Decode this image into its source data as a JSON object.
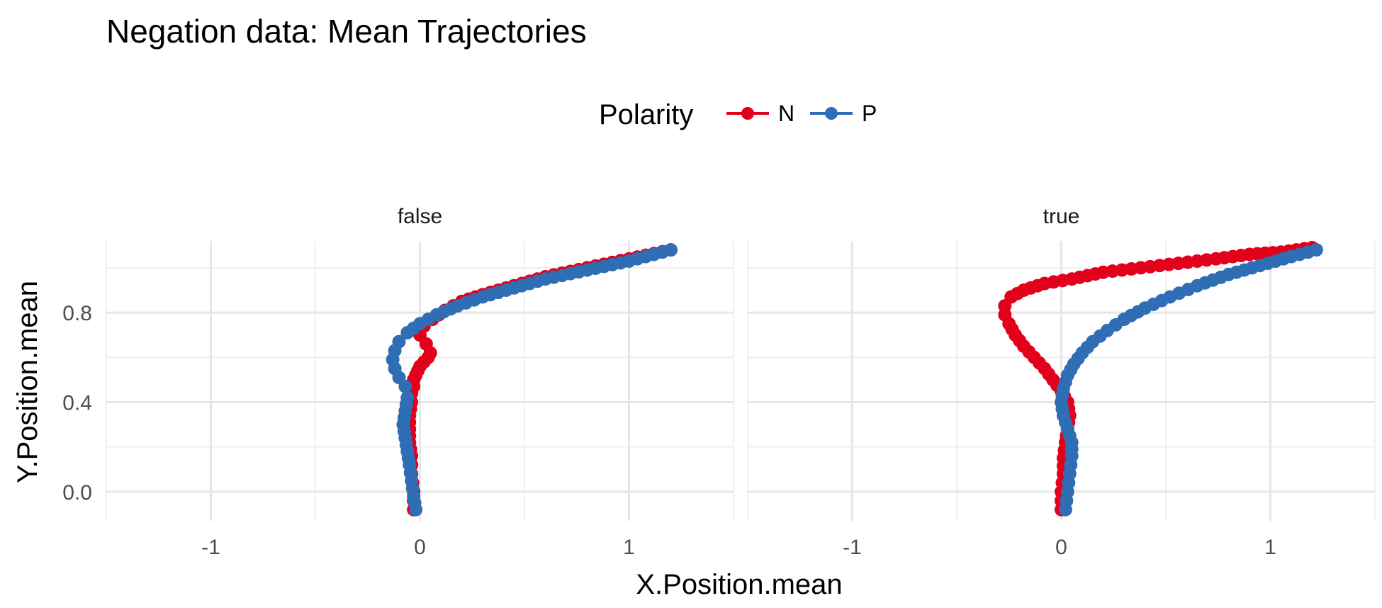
{
  "chart_data": {
    "type": "line",
    "title": "Negation data: Mean Trajectories",
    "xlabel": "X.Position.mean",
    "ylabel": "Y.Position.mean",
    "xlim": [
      -1.5,
      1.5
    ],
    "ylim": [
      -0.13,
      1.12
    ],
    "x_ticks": [
      -1,
      0,
      1
    ],
    "x_tick_labels": [
      "-1",
      "0",
      "1"
    ],
    "y_ticks": [
      0.0,
      0.4,
      0.8
    ],
    "y_tick_labels": [
      "0.0",
      "0.4",
      "0.8"
    ],
    "grid": true,
    "legend": {
      "title": "Polarity",
      "placement": "top",
      "entries": [
        {
          "label": "N",
          "color": "#e2001a"
        },
        {
          "label": "P",
          "color": "#2f6db5"
        }
      ]
    },
    "facets": [
      {
        "label": "false",
        "series": [
          {
            "name": "N",
            "color": "#e2001a",
            "x": [
              -0.03,
              -0.03,
              -0.04,
              -0.04,
              -0.05,
              -0.05,
              -0.05,
              -0.04,
              -0.04,
              -0.03,
              -0.03,
              -0.02,
              -0.01,
              0.0,
              0.02,
              0.04,
              0.05,
              0.03,
              0.0,
              0.02,
              0.06,
              0.12,
              0.2,
              0.3,
              0.45,
              0.6,
              0.8,
              1.0,
              1.2
            ],
            "y": [
              -0.08,
              0.0,
              0.08,
              0.16,
              0.22,
              0.28,
              0.34,
              0.4,
              0.44,
              0.47,
              0.5,
              0.52,
              0.54,
              0.56,
              0.58,
              0.6,
              0.62,
              0.66,
              0.7,
              0.74,
              0.77,
              0.81,
              0.85,
              0.88,
              0.92,
              0.96,
              1.0,
              1.04,
              1.08
            ]
          },
          {
            "name": "P",
            "color": "#2f6db5",
            "x": [
              -0.02,
              -0.03,
              -0.04,
              -0.05,
              -0.06,
              -0.07,
              -0.08,
              -0.07,
              -0.06,
              -0.07,
              -0.1,
              -0.12,
              -0.13,
              -0.12,
              -0.1,
              -0.06,
              0.0,
              0.08,
              0.18,
              0.3,
              0.45,
              0.6,
              0.8,
              1.0,
              1.2
            ],
            "y": [
              -0.08,
              -0.02,
              0.05,
              0.12,
              0.18,
              0.24,
              0.3,
              0.36,
              0.42,
              0.47,
              0.51,
              0.55,
              0.59,
              0.63,
              0.67,
              0.71,
              0.75,
              0.79,
              0.83,
              0.87,
              0.91,
              0.95,
              0.99,
              1.03,
              1.08
            ]
          }
        ]
      },
      {
        "label": "true",
        "series": [
          {
            "name": "N",
            "color": "#e2001a",
            "x": [
              0.0,
              0.0,
              0.01,
              0.01,
              0.02,
              0.03,
              0.04,
              0.03,
              0.0,
              -0.04,
              -0.08,
              -0.13,
              -0.18,
              -0.22,
              -0.25,
              -0.27,
              -0.27,
              -0.24,
              -0.18,
              -0.08,
              0.05,
              0.2,
              0.38,
              0.56,
              0.74,
              0.9,
              1.05,
              1.2
            ],
            "y": [
              -0.08,
              0.0,
              0.08,
              0.15,
              0.22,
              0.28,
              0.34,
              0.4,
              0.45,
              0.5,
              0.55,
              0.6,
              0.65,
              0.7,
              0.75,
              0.79,
              0.83,
              0.87,
              0.9,
              0.93,
              0.95,
              0.98,
              1.0,
              1.02,
              1.04,
              1.06,
              1.07,
              1.09
            ]
          },
          {
            "name": "P",
            "color": "#2f6db5",
            "x": [
              0.02,
              0.03,
              0.04,
              0.05,
              0.05,
              0.03,
              0.01,
              0.0,
              0.01,
              0.03,
              0.06,
              0.1,
              0.15,
              0.22,
              0.3,
              0.4,
              0.52,
              0.65,
              0.8,
              0.95,
              1.1,
              1.22
            ],
            "y": [
              -0.08,
              0.0,
              0.08,
              0.16,
              0.22,
              0.28,
              0.34,
              0.4,
              0.46,
              0.52,
              0.57,
              0.62,
              0.67,
              0.72,
              0.77,
              0.82,
              0.87,
              0.92,
              0.97,
              1.01,
              1.05,
              1.08
            ]
          }
        ]
      }
    ]
  }
}
